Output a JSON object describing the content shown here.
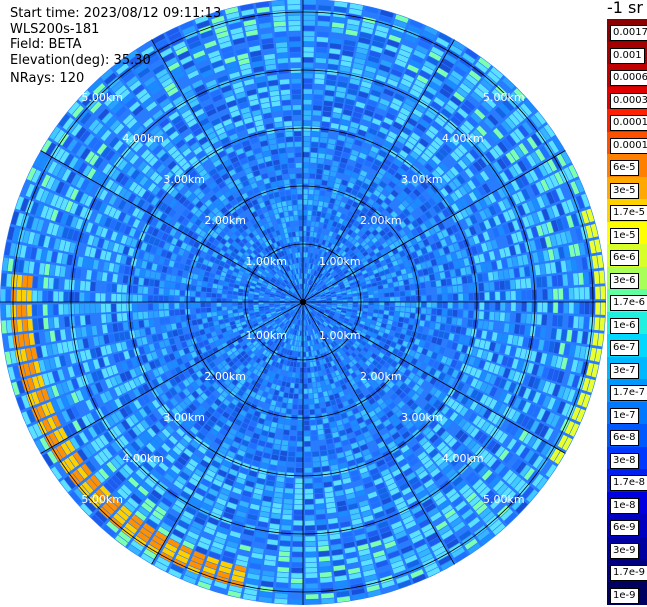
{
  "header": {
    "start_time": "Start time: 2023/08/12 09:11:13",
    "instrument": "WLS200s-181",
    "field": "Field: BETA",
    "elevation": "Elevation(deg): 35.30",
    "nrays": "NRays: 120"
  },
  "ppi": {
    "range_labels": [
      "1.00km",
      "2.00km",
      "3.00km",
      "4.00km",
      "5.00km"
    ],
    "nrays": 120
  },
  "colorbar": {
    "unit": "-1 sr",
    "labels": [
      "0.0017",
      "0.001",
      "0.0006",
      "0.0003",
      "0.00017",
      "0.0001",
      "6e-5",
      "3e-5",
      "1.7e-5",
      "1e-5",
      "6e-6",
      "3e-6",
      "1.7e-6",
      "1e-6",
      "6e-7",
      "3e-7",
      "1.7e-7",
      "1e-7",
      "6e-8",
      "3e-8",
      "1.7e-8",
      "1e-8",
      "6e-9",
      "3e-9",
      "1.7e-9",
      "1e-9"
    ],
    "colors": [
      "#8b0000",
      "#a30000",
      "#c00000",
      "#e00000",
      "#ff2000",
      "#ff5000",
      "#ff8000",
      "#ffa800",
      "#ffd000",
      "#ffff00",
      "#d8ff28",
      "#a8ff58",
      "#60ffa0",
      "#20f0e0",
      "#00d8ff",
      "#00b8ff",
      "#0098ff",
      "#0078ff",
      "#0058ff",
      "#0038ff",
      "#0020f0",
      "#0000e0",
      "#0000c0",
      "#0000a0",
      "#000080",
      "#000060"
    ]
  }
}
